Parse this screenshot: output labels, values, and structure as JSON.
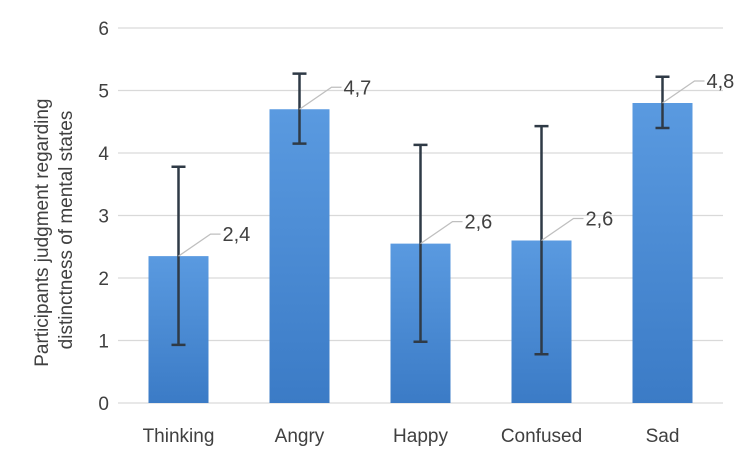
{
  "chart_data": {
    "type": "bar",
    "title": "",
    "xlabel": "",
    "ylabel_lines": [
      "Participants judgment regarding",
      "distinctness of mental states"
    ],
    "ylim": [
      0,
      6
    ],
    "yticks": [
      "0",
      "1",
      "2",
      "3",
      "4",
      "5",
      "6"
    ],
    "grid": true,
    "legend": "none",
    "categories": [
      "Thinking",
      "Angry",
      "Happy",
      "Confused",
      "Sad"
    ],
    "values": [
      2.35,
      4.7,
      2.55,
      2.6,
      4.8
    ],
    "data_labels": [
      "2,4",
      "4,7",
      "2,6",
      "2,6",
      "4,8"
    ],
    "error_low": [
      0.93,
      4.15,
      0.98,
      0.78,
      4.4
    ],
    "error_high": [
      3.78,
      5.27,
      4.13,
      4.43,
      5.22
    ],
    "bar_color": "#4f8fd6",
    "bar_color_dark": "#3a78c2",
    "grid_color": "#d9d9d9",
    "text_color": "#404040",
    "error_color": "#2f3a46"
  }
}
